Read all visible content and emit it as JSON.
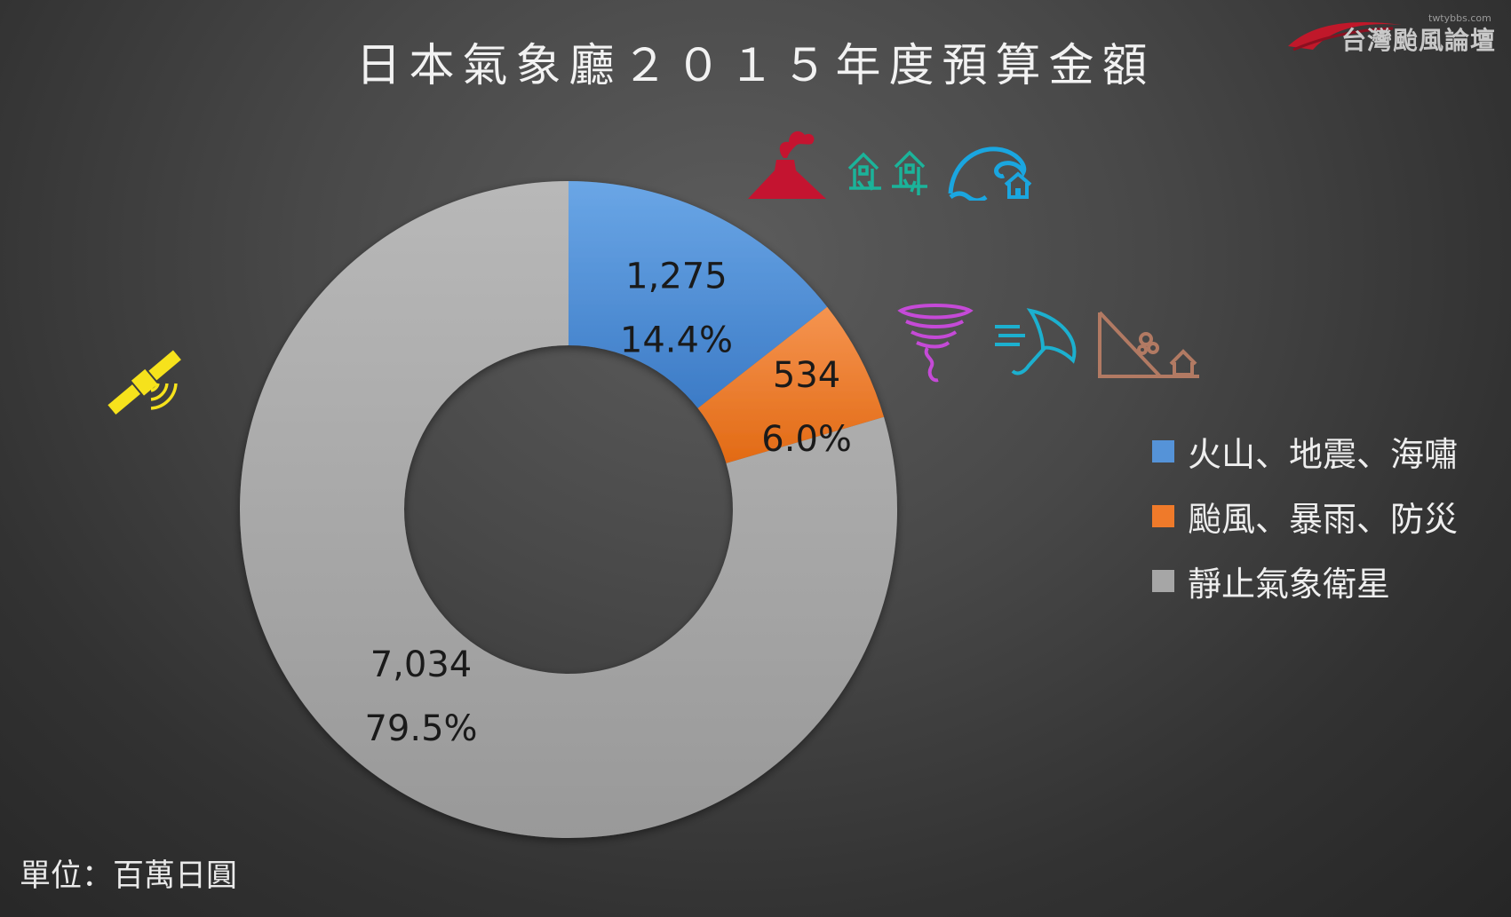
{
  "title": "日本氣象廳２０１５年度預算金額",
  "unit": "單位：百萬日圓",
  "watermark": {
    "name": "台灣颱風論壇",
    "url": "twtybbs.com"
  },
  "colors": {
    "blue": "#5593d8",
    "orange": "#ef7a2a",
    "gray": "#a6a6a6"
  },
  "icons": [
    "volcano-icon",
    "earthquake-icon",
    "tsunami-icon",
    "tornado-icon",
    "storm-umbrella-icon",
    "landslide-icon",
    "satellite-icon"
  ],
  "chart_data": {
    "type": "doughnut",
    "title": "日本氣象廳２０１５年度預算金額",
    "unit": "單位：百萬日圓",
    "legend_position": "right",
    "series": [
      {
        "name": "火山、地震、海嘯",
        "value": 1275,
        "value_label": "1,275",
        "percent_label": "14.4%",
        "color": "#5593d8"
      },
      {
        "name": "颱風、暴雨、防災",
        "value": 534,
        "value_label": "534",
        "percent_label": "6.0%",
        "color": "#ef7a2a"
      },
      {
        "name": "靜止氣象衛星",
        "value": 7034,
        "value_label": "7,034",
        "percent_label": "79.5%",
        "color": "#a6a6a6"
      }
    ]
  }
}
